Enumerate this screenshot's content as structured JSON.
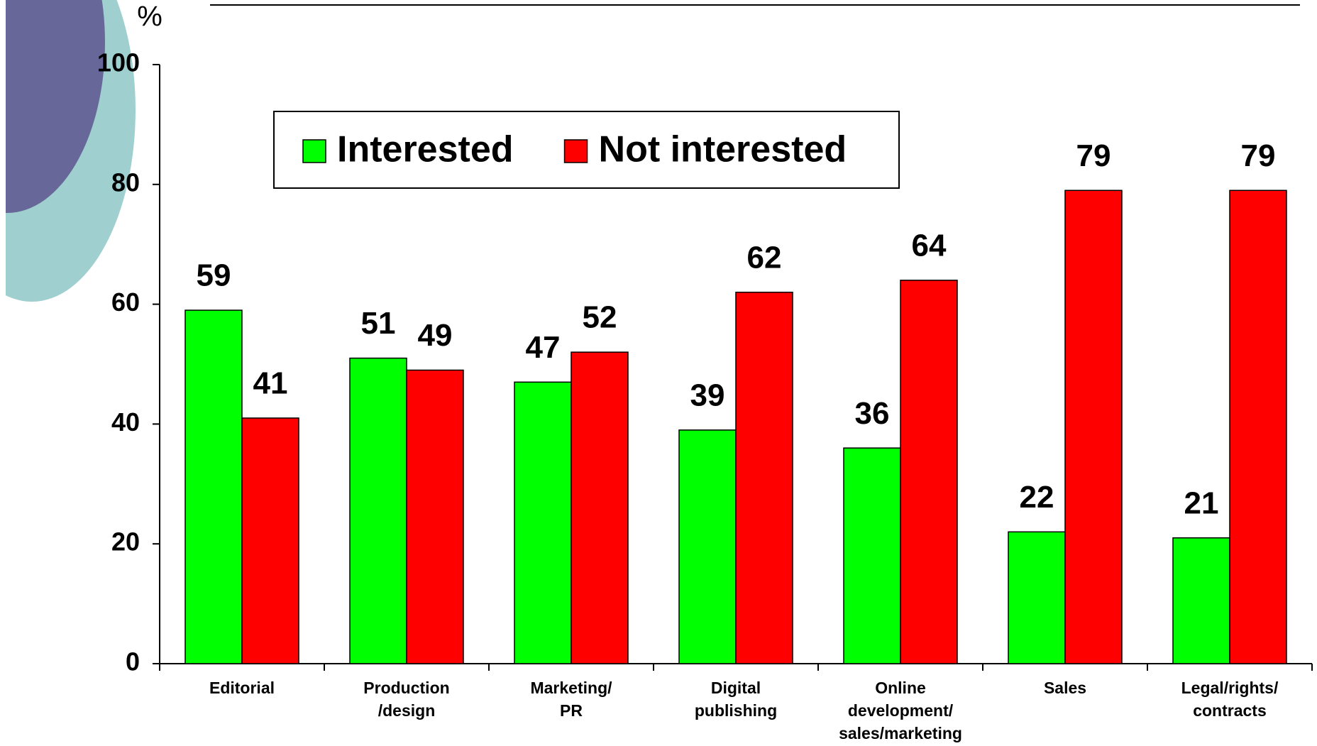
{
  "chart_data": {
    "type": "bar",
    "y_label": "%",
    "categories": [
      [
        "Editorial"
      ],
      [
        "Production",
        "/design"
      ],
      [
        "Marketing/",
        "PR"
      ],
      [
        "Digital",
        "publishing"
      ],
      [
        "Online",
        "development/",
        "sales/marketing"
      ],
      [
        "Sales"
      ],
      [
        "Legal/rights/",
        "contracts"
      ]
    ],
    "series": [
      {
        "name": "Interested",
        "color": "#00ff00",
        "values": [
          59,
          51,
          47,
          39,
          36,
          22,
          21
        ]
      },
      {
        "name": "Not interested",
        "color": "#ff0000",
        "values": [
          41,
          49,
          52,
          62,
          64,
          79,
          79
        ]
      }
    ],
    "ylim": [
      0,
      100
    ],
    "yticks": [
      0,
      20,
      40,
      60,
      80,
      100
    ],
    "grid": false,
    "legend": "top"
  }
}
